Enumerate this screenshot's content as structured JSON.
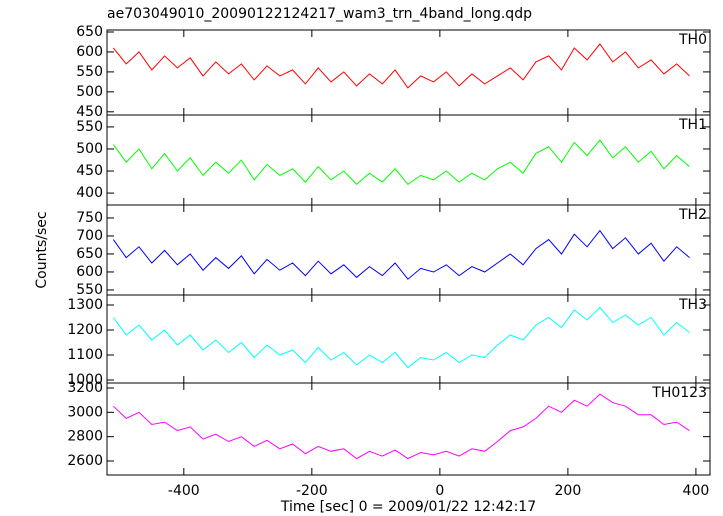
{
  "chart_data": [
    {
      "type": "line",
      "title": "ae703049010_20090122124217_wam3_trn_4band_long.qdp",
      "x": [
        -510,
        -490,
        -470,
        -450,
        -430,
        -410,
        -390,
        -370,
        -350,
        -330,
        -310,
        -290,
        -270,
        -250,
        -230,
        -210,
        -190,
        -170,
        -150,
        -130,
        -110,
        -90,
        -70,
        -50,
        -30,
        -10,
        10,
        30,
        50,
        70,
        90,
        110,
        130,
        150,
        170,
        190,
        210,
        230,
        250,
        270,
        290,
        310,
        330,
        350,
        370,
        390
      ],
      "series": [
        {
          "name": "TH0",
          "color": "#ff0000",
          "values": [
            610,
            570,
            600,
            555,
            590,
            560,
            585,
            540,
            575,
            545,
            570,
            530,
            565,
            540,
            555,
            520,
            560,
            525,
            550,
            515,
            545,
            520,
            555,
            510,
            540,
            525,
            550,
            515,
            545,
            520,
            540,
            560,
            530,
            575,
            590,
            555,
            610,
            580,
            620,
            575,
            600,
            560,
            580,
            545,
            570,
            540
          ]
        }
      ],
      "xlim": [
        -520,
        422
      ],
      "xticks": [
        -400,
        -200,
        0,
        200,
        400
      ],
      "ylim": [
        442,
        655
      ],
      "yticks": [
        450,
        500,
        550,
        600,
        650
      ]
    },
    {
      "type": "line",
      "x": [
        -510,
        -490,
        -470,
        -450,
        -430,
        -410,
        -390,
        -370,
        -350,
        -330,
        -310,
        -290,
        -270,
        -250,
        -230,
        -210,
        -190,
        -170,
        -150,
        -130,
        -110,
        -90,
        -70,
        -50,
        -30,
        -10,
        10,
        30,
        50,
        70,
        90,
        110,
        130,
        150,
        170,
        190,
        210,
        230,
        250,
        270,
        290,
        310,
        330,
        350,
        370,
        390
      ],
      "series": [
        {
          "name": "TH1",
          "color": "#00ff00",
          "values": [
            510,
            470,
            500,
            455,
            490,
            450,
            480,
            440,
            470,
            445,
            475,
            430,
            465,
            440,
            455,
            425,
            460,
            430,
            450,
            420,
            445,
            425,
            455,
            420,
            440,
            430,
            450,
            425,
            445,
            430,
            455,
            470,
            445,
            490,
            505,
            470,
            515,
            485,
            520,
            480,
            505,
            470,
            495,
            455,
            485,
            460
          ]
        }
      ],
      "xlim": [
        -520,
        422
      ],
      "xticks": [
        -400,
        -200,
        0,
        200,
        400
      ],
      "ylim": [
        373,
        577
      ],
      "yticks": [
        400,
        450,
        500,
        550
      ]
    },
    {
      "type": "line",
      "ylabel": "Counts/sec",
      "x": [
        -510,
        -490,
        -470,
        -450,
        -430,
        -410,
        -390,
        -370,
        -350,
        -330,
        -310,
        -290,
        -270,
        -250,
        -230,
        -210,
        -190,
        -170,
        -150,
        -130,
        -110,
        -90,
        -70,
        -50,
        -30,
        -10,
        10,
        30,
        50,
        70,
        90,
        110,
        130,
        150,
        170,
        190,
        210,
        230,
        250,
        270,
        290,
        310,
        330,
        350,
        370,
        390
      ],
      "series": [
        {
          "name": "TH2",
          "color": "#0000ff",
          "values": [
            690,
            640,
            670,
            625,
            660,
            620,
            650,
            605,
            640,
            610,
            645,
            595,
            635,
            605,
            625,
            590,
            630,
            595,
            620,
            585,
            615,
            590,
            625,
            580,
            610,
            600,
            620,
            590,
            615,
            600,
            625,
            650,
            620,
            665,
            690,
            650,
            705,
            670,
            715,
            665,
            695,
            650,
            680,
            630,
            670,
            640
          ]
        }
      ],
      "xlim": [
        -520,
        422
      ],
      "xticks": [
        -400,
        -200,
        0,
        200,
        400
      ],
      "ylim": [
        536,
        786
      ],
      "yticks": [
        550,
        600,
        650,
        700,
        750
      ]
    },
    {
      "type": "line",
      "x": [
        -510,
        -490,
        -470,
        -450,
        -430,
        -410,
        -390,
        -370,
        -350,
        -330,
        -310,
        -290,
        -270,
        -250,
        -230,
        -210,
        -190,
        -170,
        -150,
        -130,
        -110,
        -90,
        -70,
        -50,
        -30,
        -10,
        10,
        30,
        50,
        70,
        90,
        110,
        130,
        150,
        170,
        190,
        210,
        230,
        250,
        270,
        290,
        310,
        330,
        350,
        370,
        390
      ],
      "series": [
        {
          "name": "TH3",
          "color": "#00ffff",
          "values": [
            1250,
            1180,
            1220,
            1160,
            1200,
            1140,
            1180,
            1120,
            1160,
            1110,
            1150,
            1090,
            1140,
            1100,
            1120,
            1070,
            1130,
            1080,
            1110,
            1060,
            1100,
            1070,
            1110,
            1050,
            1090,
            1080,
            1110,
            1070,
            1100,
            1090,
            1140,
            1180,
            1160,
            1220,
            1250,
            1210,
            1280,
            1240,
            1290,
            1230,
            1260,
            1220,
            1250,
            1180,
            1230,
            1190
          ]
        }
      ],
      "xlim": [
        -520,
        422
      ],
      "xticks": [
        -400,
        -200,
        0,
        200,
        400
      ],
      "ylim": [
        988,
        1340
      ],
      "yticks": [
        1000,
        1100,
        1200,
        1300
      ]
    },
    {
      "type": "line",
      "xlabel": "Time [sec] 0 = 2009/01/22 12:42:17",
      "x": [
        -510,
        -490,
        -470,
        -450,
        -430,
        -410,
        -390,
        -370,
        -350,
        -330,
        -310,
        -290,
        -270,
        -250,
        -230,
        -210,
        -190,
        -170,
        -150,
        -130,
        -110,
        -90,
        -70,
        -50,
        -30,
        -10,
        10,
        30,
        50,
        70,
        90,
        110,
        130,
        150,
        170,
        190,
        210,
        230,
        250,
        270,
        290,
        310,
        330,
        350,
        370,
        390
      ],
      "series": [
        {
          "name": "TH0123",
          "color": "#ff00ff",
          "values": [
            3050,
            2950,
            3000,
            2900,
            2920,
            2850,
            2880,
            2780,
            2820,
            2760,
            2800,
            2720,
            2770,
            2700,
            2740,
            2660,
            2720,
            2680,
            2700,
            2620,
            2680,
            2640,
            2690,
            2620,
            2670,
            2650,
            2680,
            2640,
            2700,
            2680,
            2760,
            2850,
            2880,
            2950,
            3050,
            3000,
            3100,
            3050,
            3150,
            3080,
            3050,
            2980,
            2980,
            2900,
            2920,
            2850
          ]
        }
      ],
      "xlim": [
        -520,
        422
      ],
      "xticks": [
        -400,
        -200,
        0,
        200,
        400
      ],
      "ylim": [
        2485,
        3241
      ],
      "yticks": [
        2600,
        2800,
        3000,
        3200
      ]
    }
  ]
}
